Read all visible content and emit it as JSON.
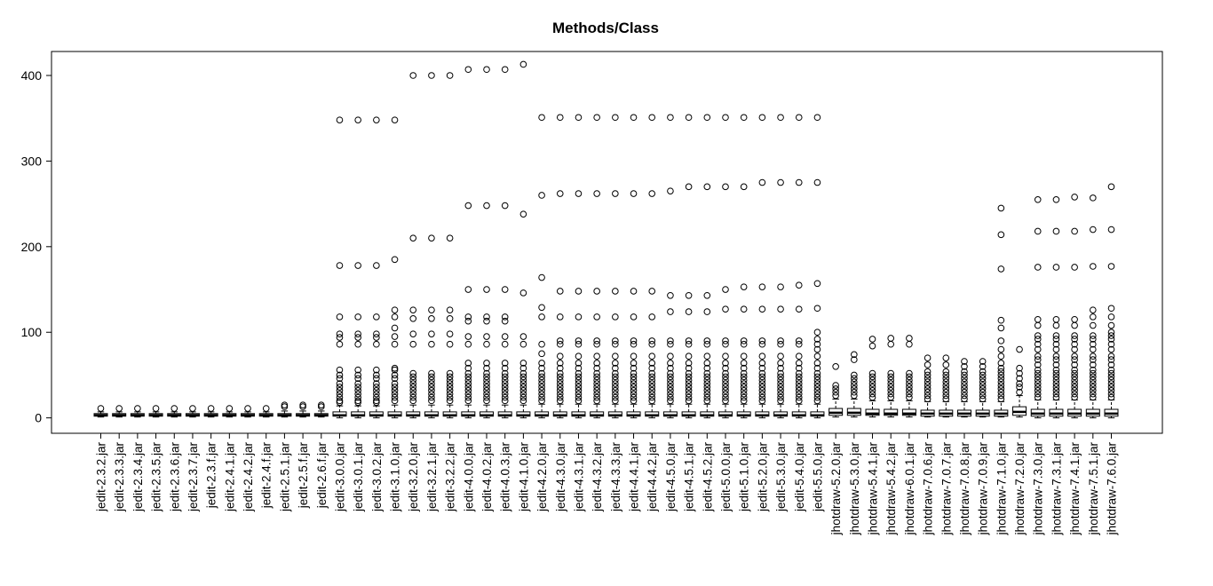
{
  "chart_data": {
    "type": "boxplot",
    "title": "Methods/Class",
    "xlabel": "",
    "ylabel": "",
    "ylim": [
      -18,
      428
    ],
    "yticks": [
      0,
      100,
      200,
      300,
      400
    ],
    "grid": false,
    "categories": [
      "jedit-2.3.2.jar",
      "jedit-2.3.3.jar",
      "jedit-2.3.4.jar",
      "jedit-2.3.5.jar",
      "jedit-2.3.6.jar",
      "jedit-2.3.7.jar",
      "jedit-2.3.f.jar",
      "jedit-2.4.1.jar",
      "jedit-2.4.2.jar",
      "jedit-2.4.f.jar",
      "jedit-2.5.1.jar",
      "jedit-2.5.f.jar",
      "jedit-2.6.f.jar",
      "jedit-3.0.0.jar",
      "jedit-3.0.1.jar",
      "jedit-3.0.2.jar",
      "jedit-3.1.0.jar",
      "jedit-3.2.0.jar",
      "jedit-3.2.1.jar",
      "jedit-3.2.2.jar",
      "jedit-4.0.0.jar",
      "jedit-4.0.2.jar",
      "jedit-4.0.3.jar",
      "jedit-4.1.0.jar",
      "jedit-4.2.0.jar",
      "jedit-4.3.0.jar",
      "jedit-4.3.1.jar",
      "jedit-4.3.2.jar",
      "jedit-4.3.3.jar",
      "jedit-4.4.1.jar",
      "jedit-4.4.2.jar",
      "jedit-4.5.0.jar",
      "jedit-4.5.1.jar",
      "jedit-4.5.2.jar",
      "jedit-5.0.0.jar",
      "jedit-5.1.0.jar",
      "jedit-5.2.0.jar",
      "jedit-5.3.0.jar",
      "jedit-5.4.0.jar",
      "jedit-5.5.0.jar",
      "jhotdraw-5.2.0.jar",
      "jhotdraw-5.3.0.jar",
      "jhotdraw-5.4.1.jar",
      "jhotdraw-5.4.2.jar",
      "jhotdraw-6.0.1.jar",
      "jhotdraw-7.0.6.jar",
      "jhotdraw-7.0.7.jar",
      "jhotdraw-7.0.8.jar",
      "jhotdraw-7.0.9.jar",
      "jhotdraw-7.1.0.jar",
      "jhotdraw-7.2.0.jar",
      "jhotdraw-7.3.0.jar",
      "jhotdraw-7.3.1.jar",
      "jhotdraw-7.4.1.jar",
      "jhotdraw-7.5.1.jar",
      "jhotdraw-7.6.0.jar"
    ],
    "stats": [
      [
        1,
        2,
        3,
        5,
        7
      ],
      [
        1,
        2,
        3,
        5,
        7
      ],
      [
        1,
        2,
        3,
        5,
        7
      ],
      [
        1,
        2,
        3,
        5,
        7
      ],
      [
        1,
        2,
        3,
        5,
        7
      ],
      [
        1,
        2,
        3,
        5,
        7
      ],
      [
        1,
        2,
        3,
        5,
        7
      ],
      [
        1,
        2,
        3,
        5,
        7
      ],
      [
        1,
        2,
        3,
        5,
        7
      ],
      [
        1,
        2,
        3,
        5,
        7
      ],
      [
        1,
        2,
        3,
        5,
        8
      ],
      [
        1,
        2,
        3,
        5,
        8
      ],
      [
        1,
        2,
        3,
        5,
        8
      ],
      [
        0,
        2,
        3,
        7,
        14
      ],
      [
        0,
        2,
        3,
        7,
        14
      ],
      [
        0,
        2,
        3,
        7,
        14
      ],
      [
        0,
        2,
        3,
        7,
        15
      ],
      [
        0,
        2,
        3,
        7,
        15
      ],
      [
        0,
        2,
        3,
        7,
        15
      ],
      [
        0,
        2,
        3,
        7,
        15
      ],
      [
        0,
        2,
        3,
        7,
        15
      ],
      [
        0,
        2,
        3,
        7,
        15
      ],
      [
        0,
        2,
        3,
        7,
        15
      ],
      [
        0,
        2,
        3,
        7,
        15
      ],
      [
        0,
        2,
        3,
        7,
        16
      ],
      [
        0,
        2,
        3,
        7,
        16
      ],
      [
        0,
        2,
        3,
        7,
        16
      ],
      [
        0,
        2,
        3,
        7,
        16
      ],
      [
        0,
        2,
        3,
        7,
        16
      ],
      [
        0,
        2,
        3,
        7,
        16
      ],
      [
        0,
        2,
        3,
        7,
        16
      ],
      [
        0,
        2,
        3,
        7,
        16
      ],
      [
        0,
        2,
        3,
        7,
        16
      ],
      [
        0,
        2,
        3,
        7,
        16
      ],
      [
        0,
        2,
        3,
        7,
        16
      ],
      [
        0,
        2,
        3,
        7,
        16
      ],
      [
        0,
        2,
        3,
        7,
        16
      ],
      [
        0,
        2,
        3,
        7,
        16
      ],
      [
        0,
        2,
        3,
        7,
        16
      ],
      [
        0,
        2,
        3,
        7,
        16
      ],
      [
        1,
        3,
        6,
        11,
        22
      ],
      [
        1,
        3,
        6,
        11,
        22
      ],
      [
        1,
        3,
        5,
        10,
        20
      ],
      [
        1,
        3,
        5,
        10,
        20
      ],
      [
        1,
        3,
        5,
        10,
        20
      ],
      [
        1,
        2,
        5,
        9,
        19
      ],
      [
        1,
        2,
        5,
        9,
        19
      ],
      [
        1,
        2,
        5,
        9,
        19
      ],
      [
        1,
        2,
        5,
        9,
        19
      ],
      [
        1,
        2,
        5,
        9,
        19
      ],
      [
        1,
        3,
        7,
        13,
        26
      ],
      [
        0,
        2,
        5,
        10,
        21
      ],
      [
        0,
        2,
        5,
        10,
        21
      ],
      [
        0,
        2,
        5,
        10,
        21
      ],
      [
        0,
        2,
        5,
        10,
        21
      ],
      [
        0,
        2,
        5,
        10,
        21
      ]
    ],
    "outliers": [
      [
        11
      ],
      [
        11
      ],
      [
        11
      ],
      [
        11
      ],
      [
        11
      ],
      [
        11
      ],
      [
        11
      ],
      [
        11
      ],
      [
        11
      ],
      [
        11
      ],
      [
        13,
        15
      ],
      [
        13,
        15
      ],
      [
        13,
        15
      ],
      [
        18,
        20,
        24,
        28,
        32,
        36,
        40,
        46,
        50,
        56,
        86,
        94,
        98,
        118,
        178,
        348
      ],
      [
        18,
        20,
        24,
        28,
        32,
        36,
        40,
        46,
        50,
        56,
        86,
        94,
        98,
        118,
        178,
        348
      ],
      [
        18,
        20,
        24,
        28,
        32,
        36,
        40,
        46,
        50,
        56,
        86,
        94,
        98,
        118,
        178,
        348
      ],
      [
        20,
        24,
        28,
        32,
        36,
        40,
        46,
        50,
        56,
        58,
        86,
        95,
        105,
        118,
        126,
        185,
        348
      ],
      [
        20,
        24,
        28,
        32,
        36,
        40,
        44,
        48,
        52,
        86,
        98,
        116,
        126,
        210,
        400
      ],
      [
        20,
        24,
        28,
        32,
        36,
        40,
        44,
        48,
        52,
        86,
        98,
        116,
        126,
        210,
        400
      ],
      [
        20,
        24,
        28,
        32,
        36,
        40,
        44,
        48,
        52,
        86,
        98,
        116,
        126,
        210,
        400
      ],
      [
        20,
        24,
        28,
        32,
        36,
        40,
        44,
        48,
        52,
        58,
        64,
        86,
        95,
        113,
        118,
        150,
        248,
        407
      ],
      [
        20,
        24,
        28,
        32,
        36,
        40,
        44,
        48,
        52,
        58,
        64,
        86,
        95,
        113,
        118,
        150,
        248,
        407
      ],
      [
        20,
        24,
        28,
        32,
        36,
        40,
        44,
        48,
        52,
        58,
        64,
        86,
        95,
        113,
        118,
        150,
        248,
        407
      ],
      [
        20,
        24,
        28,
        32,
        36,
        40,
        44,
        48,
        52,
        58,
        64,
        86,
        95,
        146,
        238,
        413
      ],
      [
        20,
        24,
        28,
        32,
        36,
        40,
        44,
        48,
        52,
        58,
        64,
        75,
        86,
        118,
        129,
        164,
        260,
        351
      ],
      [
        20,
        24,
        28,
        32,
        36,
        40,
        44,
        48,
        52,
        58,
        64,
        72,
        86,
        90,
        118,
        148,
        262,
        351
      ],
      [
        20,
        24,
        28,
        32,
        36,
        40,
        44,
        48,
        52,
        58,
        64,
        72,
        86,
        90,
        118,
        148,
        262,
        351
      ],
      [
        20,
        24,
        28,
        32,
        36,
        40,
        44,
        48,
        52,
        58,
        64,
        72,
        86,
        90,
        118,
        148,
        262,
        351
      ],
      [
        20,
        24,
        28,
        32,
        36,
        40,
        44,
        48,
        52,
        58,
        64,
        72,
        86,
        90,
        118,
        148,
        262,
        351
      ],
      [
        20,
        24,
        28,
        32,
        36,
        40,
        44,
        48,
        52,
        58,
        64,
        72,
        86,
        90,
        118,
        148,
        262,
        351
      ],
      [
        20,
        24,
        28,
        32,
        36,
        40,
        44,
        48,
        52,
        58,
        64,
        72,
        86,
        90,
        118,
        148,
        262,
        351
      ],
      [
        20,
        24,
        28,
        32,
        36,
        40,
        44,
        48,
        52,
        58,
        64,
        72,
        86,
        90,
        124,
        143,
        265,
        351
      ],
      [
        20,
        24,
        28,
        32,
        36,
        40,
        44,
        48,
        52,
        58,
        64,
        72,
        86,
        90,
        124,
        143,
        270,
        351
      ],
      [
        20,
        24,
        28,
        32,
        36,
        40,
        44,
        48,
        52,
        58,
        64,
        72,
        86,
        90,
        124,
        143,
        270,
        351
      ],
      [
        20,
        24,
        28,
        32,
        36,
        40,
        44,
        48,
        52,
        58,
        64,
        72,
        86,
        90,
        127,
        150,
        270,
        351
      ],
      [
        20,
        24,
        28,
        32,
        36,
        40,
        44,
        48,
        52,
        58,
        64,
        72,
        86,
        90,
        127,
        153,
        270,
        351
      ],
      [
        20,
        24,
        28,
        32,
        36,
        40,
        44,
        48,
        52,
        58,
        64,
        72,
        86,
        90,
        127,
        153,
        275,
        351
      ],
      [
        20,
        24,
        28,
        32,
        36,
        40,
        44,
        48,
        52,
        58,
        64,
        72,
        86,
        90,
        127,
        153,
        275,
        351
      ],
      [
        20,
        24,
        28,
        32,
        36,
        40,
        44,
        48,
        52,
        58,
        64,
        72,
        86,
        90,
        127,
        155,
        275,
        351
      ],
      [
        20,
        24,
        28,
        32,
        36,
        40,
        44,
        48,
        52,
        58,
        64,
        72,
        80,
        86,
        92,
        100,
        128,
        157,
        275,
        351
      ],
      [
        26,
        30,
        34,
        38,
        60
      ],
      [
        26,
        30,
        34,
        38,
        42,
        46,
        50,
        68,
        74
      ],
      [
        24,
        28,
        32,
        36,
        40,
        44,
        48,
        52,
        84,
        92
      ],
      [
        24,
        28,
        32,
        36,
        40,
        44,
        48,
        52,
        86,
        93
      ],
      [
        24,
        28,
        32,
        36,
        40,
        44,
        48,
        52,
        86,
        93
      ],
      [
        22,
        26,
        30,
        34,
        38,
        42,
        46,
        50,
        54,
        62,
        70
      ],
      [
        22,
        26,
        30,
        34,
        38,
        42,
        46,
        50,
        54,
        62,
        70
      ],
      [
        22,
        26,
        30,
        34,
        38,
        42,
        46,
        50,
        54,
        60,
        66
      ],
      [
        22,
        26,
        30,
        34,
        38,
        42,
        46,
        50,
        54,
        60,
        66
      ],
      [
        22,
        26,
        30,
        34,
        38,
        42,
        46,
        50,
        54,
        58,
        64,
        72,
        80,
        90,
        105,
        114,
        174,
        214,
        245
      ],
      [
        30,
        36,
        40,
        46,
        52,
        58,
        80
      ],
      [
        24,
        28,
        32,
        36,
        40,
        44,
        48,
        52,
        56,
        62,
        68,
        72,
        80,
        86,
        92,
        96,
        108,
        115,
        176,
        218,
        255
      ],
      [
        24,
        28,
        32,
        36,
        40,
        44,
        48,
        52,
        56,
        62,
        68,
        72,
        80,
        86,
        92,
        96,
        108,
        115,
        176,
        218,
        255
      ],
      [
        24,
        28,
        32,
        36,
        40,
        44,
        48,
        52,
        56,
        62,
        68,
        72,
        80,
        86,
        92,
        96,
        108,
        115,
        176,
        218,
        258
      ],
      [
        24,
        28,
        32,
        36,
        40,
        44,
        48,
        52,
        56,
        62,
        68,
        72,
        80,
        86,
        92,
        96,
        108,
        118,
        126,
        177,
        220,
        257
      ],
      [
        24,
        28,
        32,
        36,
        40,
        44,
        48,
        52,
        56,
        62,
        68,
        72,
        80,
        86,
        92,
        96,
        100,
        108,
        118,
        128,
        177,
        220,
        270
      ]
    ]
  }
}
